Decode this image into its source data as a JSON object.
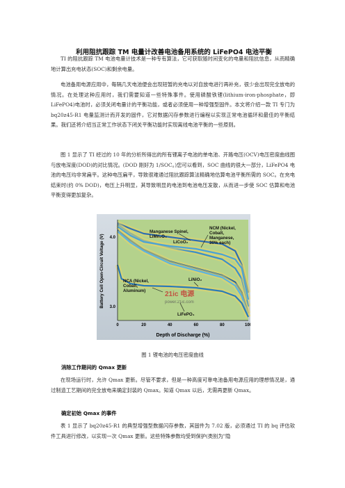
{
  "title": "利用阻抗跟踪 TM 电量计改善电池备用系统的 LiFePO4 电池平衡",
  "paragraphs": [
    "TI 的阻抗跟踪 TM 电池电量计技术是一种专有算法，它可获取随时间变化的电量和阻抗信息，从而精确地计算出充电状态(SOC)和剩余电量。",
    "电池备用电源应用中，每隔几天电池便会出现短暂的充电以对自放电进行再补充，很少会出现完全放电的情况。在处理这种应用时，我们需要知道一些特殊事件。使用磷酸铁锂(lithium-iron-phosphate，即 LiFePO4)电池时，必须关闭电量计的平衡功能，或者必须使用一种增强型固件。本文将介绍一款 TI 专门为 bq20z45-R1 电量监测计而开发的固件，它对数据闪存参数进行编程以实现正常电池循环和最佳的平衡结果。我们还将介绍当正常工作状态下闭关平衡功能时实现离线电池平衡的一些原则。",
    "图 1 显示了 TI 经过的 10 年的分析所得出的所有锂离子电池的单电池、开路电压(OCV)电压密度曲线图与放电深度(DOD)的对比情况。(DOD 刚好为 1/SOC。)您可以看到，SOC 曲线的很大一部分，LiFePO4 电池的电压均非常扁平。这种电压扁平，导致很难通过阻抗跟踪算法精确地估算电池平衡所需的 SOC。在充电结束时(约 0% DOD)，电压上升明显，其导致明显的电池到电池电压发散，从而进一步使 SOC 估算和电池平衡变得更加复杂。"
  ],
  "figure": {
    "labels": {
      "manganese": [
        "Manganese Spinel,",
        "LiMn₂O₄"
      ],
      "ncm": [
        "NCM (Nickel,",
        "Cobalt,",
        "Manganese,",
        "30% each)"
      ],
      "licoo2": "LiCoO₂",
      "nca": [
        "NCA (Nickel,",
        "Cobalt,",
        "Aluminum)"
      ],
      "linio2": "LiNiO₂",
      "lifepo4": "LiFePO₄"
    },
    "watermark_cn": "21ic 电源",
    "watermark_url": "power.21ic.com",
    "chart_data": {
      "type": "line",
      "xlabel": "Depth of Discharge (%)",
      "ylabel": "Battery Cell Open-Circuit Voltage (V)",
      "xlim": [
        0,
        100
      ],
      "ylim": [
        2.8,
        4.25
      ],
      "x_ticks": [
        "0",
        "20",
        "40",
        "60",
        "80",
        "100"
      ],
      "y_ticks": [
        "3.0",
        "4.0"
      ],
      "series": [
        {
          "name": "Manganese Spinel, LiMn2O4",
          "x": [
            0,
            10,
            20,
            40,
            60,
            80,
            90,
            95,
            100
          ],
          "y": [
            4.2,
            4.12,
            4.05,
            4.0,
            3.95,
            3.9,
            3.8,
            3.6,
            3.2
          ]
        },
        {
          "name": "NCM (Nickel, Cobalt, Manganese, 30% each)",
          "x": [
            0,
            10,
            20,
            40,
            60,
            80,
            90,
            95,
            100
          ],
          "y": [
            4.18,
            4.05,
            3.95,
            3.85,
            3.78,
            3.68,
            3.55,
            3.4,
            3.0
          ]
        },
        {
          "name": "LiCoO2",
          "x": [
            0,
            10,
            20,
            40,
            60,
            80,
            90,
            95,
            100
          ],
          "y": [
            4.15,
            4.02,
            3.93,
            3.87,
            3.83,
            3.75,
            3.68,
            3.55,
            3.1
          ]
        },
        {
          "name": "NCA (Nickel, Cobalt, Aluminum)",
          "x": [
            0,
            10,
            20,
            40,
            60,
            80,
            90,
            95,
            100
          ],
          "y": [
            4.1,
            3.95,
            3.82,
            3.65,
            3.55,
            3.45,
            3.35,
            3.2,
            2.9
          ]
        },
        {
          "name": "LiNiO2",
          "x": [
            0,
            10,
            20,
            40,
            60,
            80,
            90,
            95,
            100
          ],
          "y": [
            4.08,
            3.92,
            3.8,
            3.62,
            3.52,
            3.42,
            3.3,
            3.15,
            2.85
          ]
        },
        {
          "name": "LiFePO4",
          "x": [
            0,
            3,
            10,
            20,
            40,
            60,
            80,
            90,
            95,
            100
          ],
          "y": [
            3.6,
            3.4,
            3.33,
            3.3,
            3.29,
            3.27,
            3.22,
            3.15,
            3.05,
            2.85
          ]
        }
      ]
    },
    "colors": {
      "panel": "#b4d28c",
      "bg": "#c9d3dc"
    }
  },
  "caption": "图 1  锂电池的电压密度曲线",
  "sections": [
    {
      "heading": "消除工作期间的 Qmax 更新",
      "text": "在现场运行时，允许 Qmax 更新。尽管不要求，但是一种高度可靠电池备用电源应用的理想情况是，通过制造工艺期间的完全放电来确定封装的 Qmax。知道 Qmax 以后，无需再更新 Qmax。"
    },
    {
      "heading": "确定初始 Qmax 的事件",
      "text": "表 1 显示了 bq20z45-R1 的典型增强型数据闪存参数，其固件为 7.02 版，必须通过 TI 的 bq 评估软件工具进行修改，以实现一次 Qmax 更新。这些特殊参数均受到保护(类别为\"隐"
    }
  ]
}
